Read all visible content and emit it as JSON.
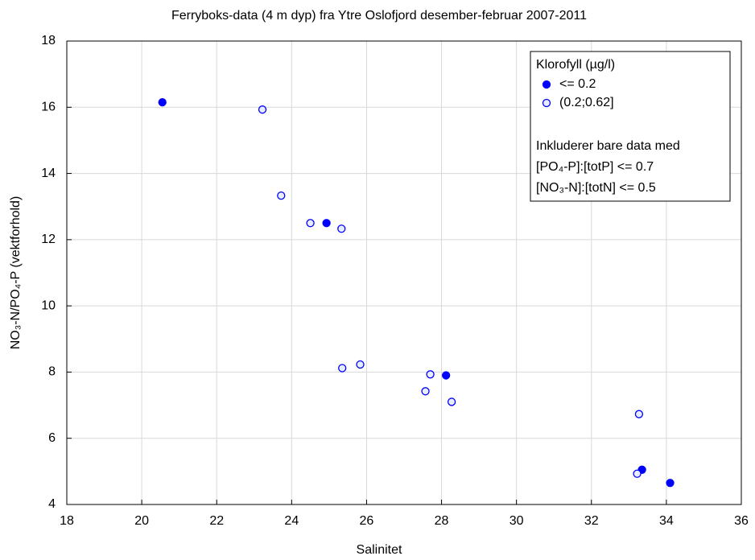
{
  "chart_data": {
    "type": "scatter",
    "title": "Ferryboks-data (4 m dyp) fra Ytre Oslofjord desember-februar 2007-2011",
    "xlabel": "Salinitet",
    "ylabel": "NO₃-N/PO₄-P (vektforhold)",
    "xlim": [
      18,
      36
    ],
    "xticks": [
      18,
      20,
      22,
      24,
      26,
      28,
      30,
      32,
      34,
      36
    ],
    "ylim": [
      4,
      18
    ],
    "yticks": [
      4,
      6,
      8,
      10,
      12,
      14,
      16,
      18
    ],
    "grid": true,
    "legend": {
      "title": "Klorofyll (µg/l)",
      "loc": "upper right",
      "notes": [
        "Inkluderer bare data med",
        "[PO₄-P]:[totP] <= 0.7",
        "[NO₃-N]:[totN] <= 0.5"
      ]
    },
    "series": [
      {
        "name": "<= 0.2",
        "color": "#0000ff",
        "marker": "filled",
        "x": [
          20.55,
          24.93,
          28.12,
          33.35,
          34.1
        ],
        "values": [
          16.15,
          12.5,
          7.9,
          5.05,
          4.65
        ]
      },
      {
        "name": "(0.2;0.62]",
        "color": "#0000ff",
        "marker": "open",
        "x": [
          23.22,
          23.72,
          24.5,
          25.33,
          25.35,
          25.83,
          27.7,
          27.57,
          28.27,
          33.27,
          33.22
        ],
        "values": [
          15.93,
          13.33,
          12.5,
          12.33,
          8.12,
          8.23,
          7.93,
          7.42,
          7.1,
          6.73,
          4.93
        ]
      }
    ]
  }
}
